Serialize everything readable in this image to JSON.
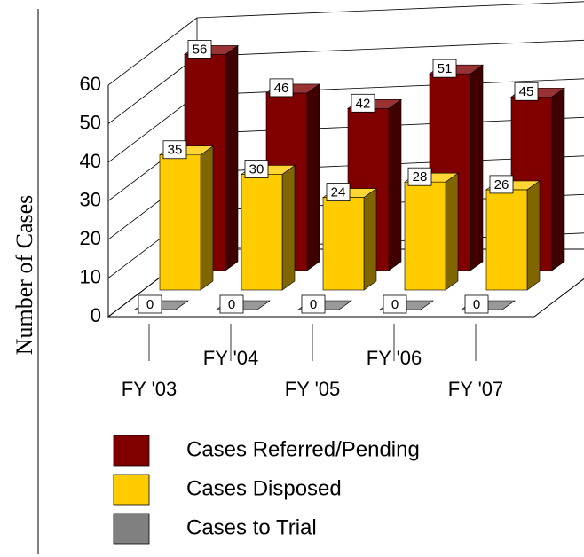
{
  "chart_data": {
    "type": "bar3d",
    "y_label": "Number of Cases",
    "categories": [
      "FY '03",
      "FY '04",
      "FY '05",
      "FY '06",
      "FY '07"
    ],
    "series": [
      {
        "name": "Cases Referred/Pending",
        "color": "#800000",
        "values": [
          56,
          46,
          42,
          51,
          45
        ]
      },
      {
        "name": "Cases Disposed",
        "color": "#ffcc00",
        "values": [
          35,
          30,
          24,
          28,
          26
        ]
      },
      {
        "name": "Cases to Trial",
        "color": "#808080",
        "values": [
          0,
          0,
          0,
          0,
          0
        ]
      }
    ],
    "ylim": [
      0,
      60
    ],
    "yticks": [
      0,
      10,
      20,
      30,
      40,
      50,
      60
    ],
    "grid": true,
    "legend": "bottom"
  }
}
